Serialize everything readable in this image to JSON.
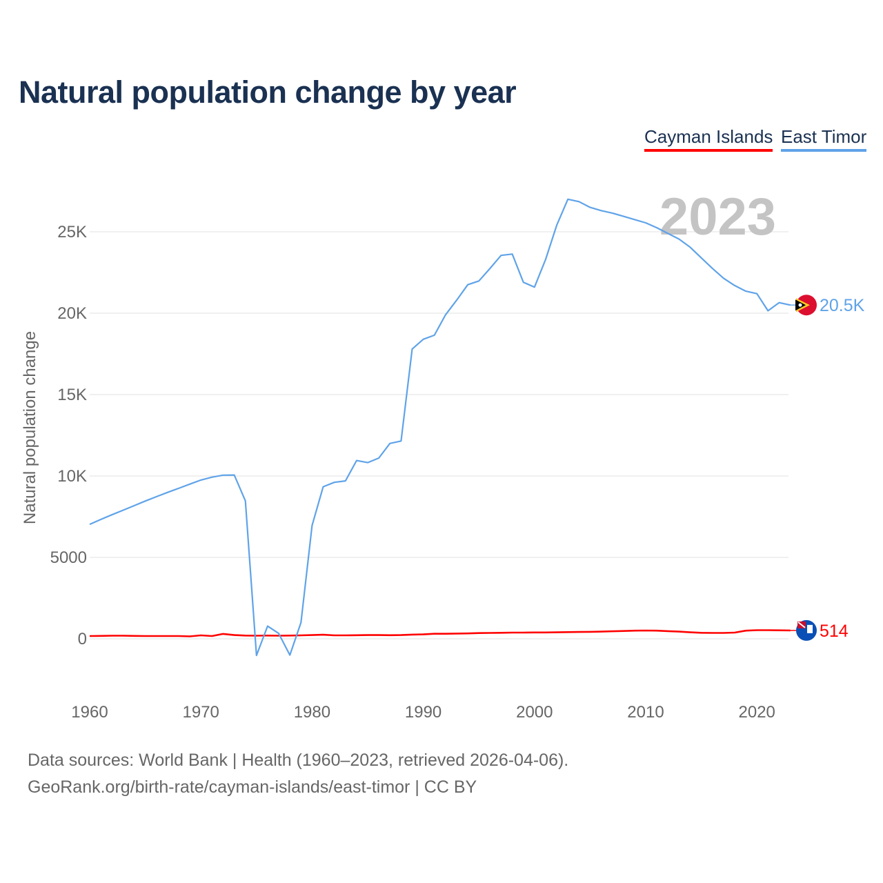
{
  "chart_data": {
    "type": "line",
    "title": "Natural population change by year",
    "ylabel": "Natural population change",
    "xlabel": "",
    "xlim": [
      1960,
      2023
    ],
    "ylim": [
      -3500,
      28000
    ],
    "grid": true,
    "legend_position": "top-right",
    "current_year_label": "2023",
    "x_ticks": [
      1960,
      1970,
      1980,
      1990,
      2000,
      2010,
      2020
    ],
    "x_tick_labels": [
      "1960",
      "1970",
      "1980",
      "1990",
      "2000",
      "2010",
      "2020"
    ],
    "y_ticks": [
      0,
      5000,
      10000,
      15000,
      20000,
      25000
    ],
    "y_tick_labels": [
      "0",
      "5000",
      "10K",
      "15K",
      "20K",
      "25K"
    ],
    "x": [
      1960,
      1961,
      1962,
      1963,
      1964,
      1965,
      1966,
      1967,
      1968,
      1969,
      1970,
      1971,
      1972,
      1973,
      1974,
      1975,
      1976,
      1977,
      1978,
      1979,
      1980,
      1981,
      1982,
      1983,
      1984,
      1985,
      1986,
      1987,
      1988,
      1989,
      1990,
      1991,
      1992,
      1993,
      1994,
      1995,
      1996,
      1997,
      1998,
      1999,
      2000,
      2001,
      2002,
      2003,
      2004,
      2005,
      2006,
      2007,
      2008,
      2009,
      2010,
      2011,
      2012,
      2013,
      2014,
      2015,
      2016,
      2017,
      2018,
      2019,
      2020,
      2021,
      2022,
      2023
    ],
    "series": [
      {
        "name": "Cayman Islands",
        "color": "#ff0000",
        "end_label": "514",
        "values": [
          170,
          180,
          190,
          190,
          180,
          170,
          170,
          170,
          170,
          150,
          210,
          170,
          300,
          230,
          200,
          190,
          200,
          190,
          200,
          210,
          230,
          250,
          210,
          210,
          220,
          230,
          230,
          220,
          230,
          260,
          270,
          310,
          310,
          320,
          330,
          350,
          360,
          370,
          380,
          380,
          390,
          390,
          400,
          410,
          420,
          430,
          440,
          460,
          480,
          500,
          510,
          500,
          470,
          440,
          400,
          370,
          360,
          360,
          380,
          500,
          530,
          530,
          520,
          514
        ]
      },
      {
        "name": "East Timor",
        "color": "#5fa3e8",
        "end_label": "20.5K",
        "values": [
          7030,
          7330,
          7620,
          7900,
          8180,
          8460,
          8730,
          8990,
          9240,
          9500,
          9750,
          9930,
          10050,
          10060,
          8470,
          -1020,
          780,
          330,
          -1000,
          1000,
          6960,
          9340,
          9610,
          9700,
          10950,
          10820,
          11100,
          12000,
          12150,
          17800,
          18400,
          18650,
          19900,
          20800,
          21750,
          21980,
          22750,
          23550,
          23630,
          21900,
          21600,
          23300,
          25400,
          27000,
          26850,
          26500,
          26300,
          26150,
          25950,
          25750,
          25550,
          25250,
          24900,
          24550,
          24050,
          23400,
          22750,
          22150,
          21700,
          21350,
          21200,
          20150,
          20650,
          20500
        ]
      }
    ]
  },
  "footer": {
    "line1": "Data sources: World Bank | Health (1960–2023, retrieved 2026-04-06).",
    "line2": "GeoRank.org/birth-rate/cayman-islands/east-timor | CC BY"
  }
}
